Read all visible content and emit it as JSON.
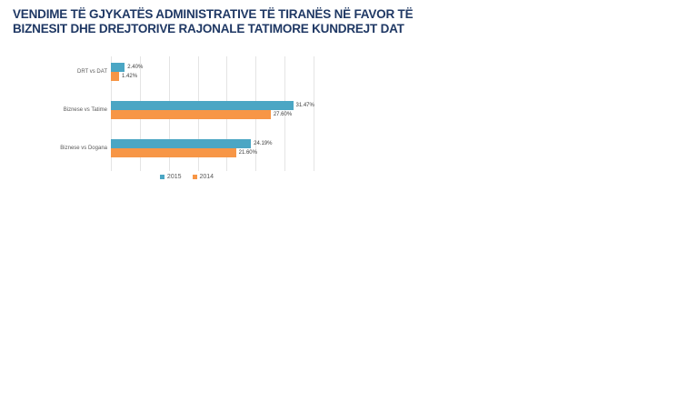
{
  "title": {
    "line1": "VENDIME TË GJYKATËS ADMINISTRATIVE TË TIRANËS NË FAVOR TË",
    "line2": "BIZNESIT DHE DREJTORIVE RAJONALE TATIMORE KUNDREJT DAT"
  },
  "chart_data": {
    "type": "bar",
    "orientation": "horizontal",
    "title": "VENDIME TË GJYKATËS ADMINISTRATIVE TË TIRANËS NË FAVOR TË BIZNESIT DHE DREJTORIVE RAJONALE TATIMORE KUNDREJT DAT",
    "categories": [
      "DRT vs DAT",
      "Biznese vs Tatime",
      "Biznese vs Dogana"
    ],
    "series": [
      {
        "name": "2015",
        "color": "#4BA6C4",
        "values": [
          2.4,
          31.47,
          24.19
        ],
        "labels": [
          "2.40%",
          "31.47%",
          "24.19%"
        ]
      },
      {
        "name": "2014",
        "color": "#F79646",
        "values": [
          1.42,
          27.6,
          21.6
        ],
        "labels": [
          "1.42%",
          "27.60%",
          "21.60%"
        ]
      }
    ],
    "xlim": [
      0,
      35
    ],
    "grid_step": 5,
    "grid": true,
    "tick_labels_visible": false,
    "legend_position": "bottom"
  },
  "colors": {
    "title": "#1F3864",
    "grid": "#E4E4E4",
    "value_label": "#3d3d3d",
    "category_label": "#595959",
    "legend_text": "#595959",
    "background": "#FFFFFF"
  }
}
